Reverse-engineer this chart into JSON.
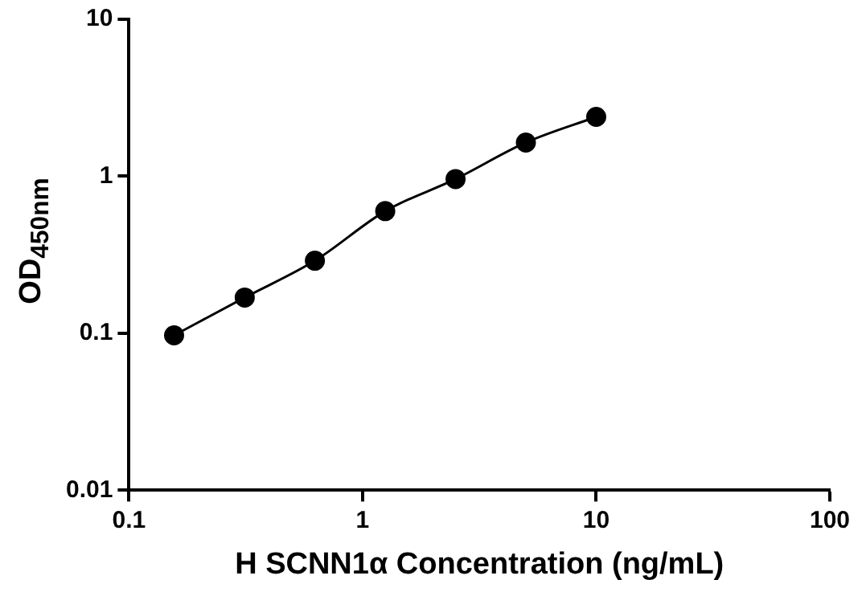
{
  "chart_data": {
    "type": "line",
    "xlabel": "H SCNN1α Concentration (ng/mL)",
    "ylabel": "OD$_{450nm}$",
    "x": [
      0.156,
      0.313,
      0.625,
      1.25,
      2.5,
      5,
      10
    ],
    "series": [
      {
        "color": "#000000",
        "values": [
          0.097,
          0.169,
          0.29,
          0.6,
          0.96,
          1.64,
          2.39
        ]
      }
    ],
    "log": "xy",
    "xlim": [
      0.1,
      100
    ],
    "ylim": [
      0.01,
      10
    ],
    "xticks": [
      0.1,
      1,
      10,
      100
    ],
    "yticks": [
      0.01,
      0.1,
      1,
      10
    ],
    "marker": "circle",
    "line_style": "solid",
    "grid": false,
    "legend": false
  }
}
